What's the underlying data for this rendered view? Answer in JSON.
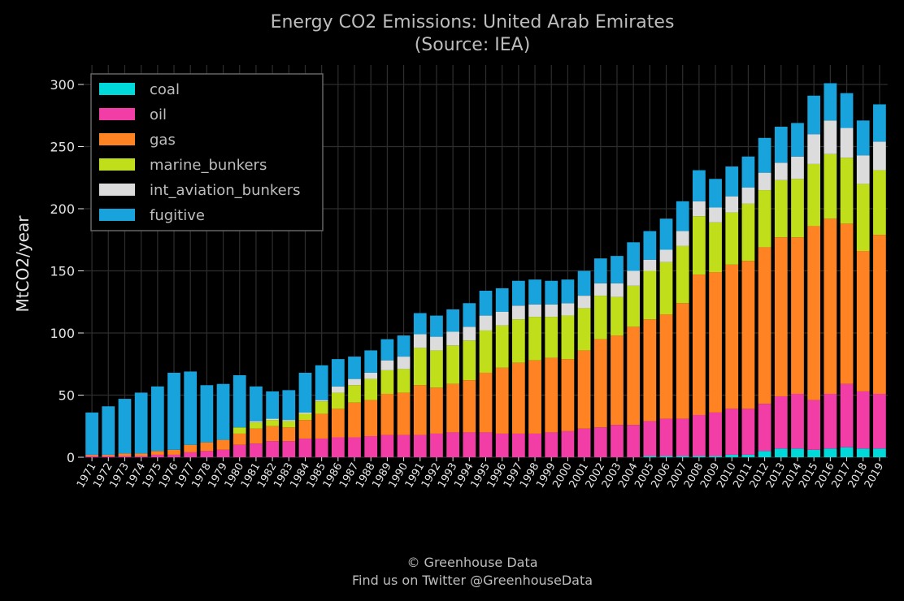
{
  "chart_data": {
    "type": "bar",
    "stacked": true,
    "title": "Energy CO2 Emissions: United Arab Emirates",
    "subtitle": "(Source: IEA)",
    "xlabel": "",
    "ylabel": "MtCO2/year",
    "ylim": [
      0,
      315
    ],
    "yticks": [
      0,
      50,
      100,
      150,
      200,
      250,
      300
    ],
    "grid": true,
    "legend_position": "top-left",
    "categories": [
      "1971",
      "1972",
      "1973",
      "1974",
      "1975",
      "1976",
      "1977",
      "1978",
      "1979",
      "1980",
      "1981",
      "1982",
      "1983",
      "1984",
      "1985",
      "1986",
      "1987",
      "1988",
      "1989",
      "1990",
      "1991",
      "1992",
      "1993",
      "1994",
      "1995",
      "1996",
      "1997",
      "1998",
      "1999",
      "2000",
      "2001",
      "2002",
      "2003",
      "2004",
      "2005",
      "2006",
      "2007",
      "2008",
      "2009",
      "2010",
      "2011",
      "2012",
      "2013",
      "2014",
      "2015",
      "2016",
      "2017",
      "2018",
      "2019"
    ],
    "series": [
      {
        "name": "coal",
        "color": "#00d9d9",
        "values": [
          0,
          0,
          0,
          0,
          0,
          0,
          0,
          0,
          0,
          0,
          0,
          0,
          0,
          0,
          0,
          0,
          0,
          0,
          0,
          0,
          0,
          0,
          0,
          0,
          0,
          0,
          0,
          0,
          0,
          0,
          0,
          0,
          0,
          0,
          1,
          1,
          1,
          1,
          1,
          2,
          2,
          5,
          7,
          7,
          6,
          7,
          8,
          7,
          7
        ]
      },
      {
        "name": "oil",
        "color": "#f23ca6",
        "values": [
          1,
          1,
          1,
          1,
          2,
          2,
          4,
          5,
          6,
          10,
          11,
          13,
          13,
          15,
          15,
          16,
          16,
          17,
          18,
          18,
          18,
          19,
          20,
          20,
          20,
          19,
          19,
          19,
          20,
          21,
          23,
          24,
          26,
          26,
          28,
          30,
          30,
          33,
          35,
          37,
          37,
          38,
          42,
          44,
          40,
          44,
          51,
          46,
          44
        ]
      },
      {
        "name": "gas",
        "color": "#ff8322",
        "values": [
          1,
          1,
          2,
          2,
          3,
          4,
          6,
          7,
          8,
          9,
          12,
          12,
          11,
          15,
          20,
          23,
          28,
          29,
          33,
          34,
          40,
          37,
          39,
          42,
          48,
          53,
          57,
          59,
          60,
          58,
          63,
          71,
          72,
          79,
          82,
          84,
          93,
          113,
          113,
          116,
          119,
          126,
          128,
          126,
          140,
          141,
          129,
          113,
          128
        ]
      },
      {
        "name": "marine_bunkers",
        "color": "#c0df1a",
        "values": [
          0,
          0,
          0,
          0,
          0,
          0,
          0,
          0,
          0,
          5,
          5,
          5,
          5,
          5,
          10,
          13,
          14,
          17,
          19,
          19,
          30,
          30,
          31,
          32,
          34,
          34,
          35,
          35,
          33,
          35,
          34,
          35,
          31,
          33,
          39,
          42,
          46,
          47,
          40,
          42,
          46,
          46,
          46,
          47,
          50,
          52,
          53,
          54,
          52
        ]
      },
      {
        "name": "int_aviation_bunkers",
        "color": "#dcdcdc",
        "values": [
          0,
          0,
          0,
          0,
          0,
          0,
          0,
          0,
          0,
          0,
          1,
          1,
          1,
          1,
          1,
          5,
          5,
          5,
          8,
          10,
          11,
          11,
          11,
          11,
          12,
          11,
          11,
          10,
          10,
          10,
          10,
          10,
          11,
          12,
          9,
          10,
          12,
          12,
          12,
          13,
          13,
          14,
          14,
          18,
          24,
          27,
          24,
          23,
          23
        ]
      },
      {
        "name": "fugitive",
        "color": "#19a3dc",
        "values": [
          34,
          39,
          44,
          49,
          52,
          62,
          59,
          46,
          45,
          42,
          28,
          22,
          24,
          32,
          28,
          22,
          18,
          18,
          17,
          17,
          17,
          17,
          18,
          19,
          20,
          19,
          20,
          20,
          19,
          19,
          20,
          20,
          22,
          23,
          23,
          25,
          24,
          25,
          23,
          24,
          25,
          28,
          29,
          27,
          31,
          30,
          28,
          28,
          30
        ]
      }
    ]
  },
  "credit": {
    "line1": "© Greenhouse Data",
    "line2": "Find us on Twitter @GreenhouseData"
  }
}
